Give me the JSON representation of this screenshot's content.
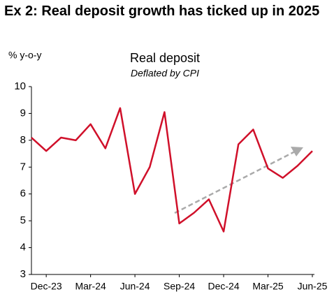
{
  "chart_data": {
    "type": "line",
    "title": "Ex 2: Real deposit growth has ticked up in 2025",
    "y_axis_label": "% y-o-y",
    "chart_title": "Real deposit",
    "subtitle": "Deflated by CPI",
    "categories": [
      null,
      "Dec-23",
      null,
      null,
      "Mar-24",
      null,
      null,
      "Jun-24",
      null,
      null,
      "Sep-24",
      null,
      null,
      "Dec-24",
      null,
      null,
      "Mar-25",
      null,
      null,
      "Jun-25"
    ],
    "values": [
      8.1,
      7.6,
      8.1,
      8.0,
      8.6,
      7.7,
      9.2,
      6.0,
      7.0,
      9.05,
      4.9,
      5.3,
      5.8,
      4.6,
      7.85,
      8.4,
      6.95,
      6.6,
      7.05,
      7.6
    ],
    "color": "#d0102a",
    "ylim": [
      3,
      10
    ],
    "yticks": [
      3,
      4,
      5,
      6,
      7,
      8,
      9,
      10
    ],
    "grid": false
  }
}
